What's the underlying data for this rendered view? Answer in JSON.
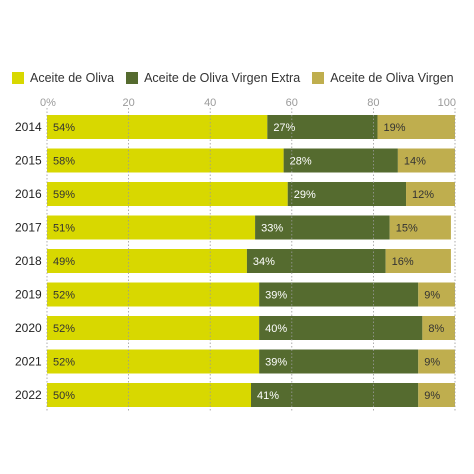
{
  "chart_data": {
    "type": "bar",
    "orientation": "horizontal",
    "stacked": true,
    "categories": [
      "2014",
      "2015",
      "2016",
      "2017",
      "2018",
      "2019",
      "2020",
      "2021",
      "2022"
    ],
    "series": [
      {
        "name": "Aceite de Oliva",
        "color": "#d8d800",
        "values": [
          54,
          58,
          59,
          51,
          49,
          52,
          52,
          52,
          50
        ],
        "labels": [
          "54%",
          "58%",
          "59%",
          "51%",
          "49%",
          "52%",
          "52%",
          "52%",
          "50%"
        ]
      },
      {
        "name": "Aceite de Oliva Virgen Extra",
        "color": "#556b2f",
        "values": [
          27,
          28,
          29,
          33,
          34,
          39,
          40,
          39,
          41
        ],
        "labels": [
          "27%",
          "28%",
          "29%",
          "33%",
          "34%",
          "39%",
          "40%",
          "39%",
          "41%"
        ]
      },
      {
        "name": "Aceite de Oliva Virgen",
        "color": "#bfae4e",
        "values": [
          19,
          14,
          12,
          15,
          16,
          9,
          8,
          9,
          9
        ],
        "labels": [
          "19%",
          "14%",
          "12%",
          "15%",
          "16%",
          "9%",
          "8%",
          "9%",
          "9%"
        ]
      }
    ],
    "xticks": [
      "0%",
      "20",
      "40",
      "60",
      "80",
      "100"
    ],
    "xlim": [
      0,
      100
    ],
    "grid": true,
    "legend_position": "top-left"
  }
}
